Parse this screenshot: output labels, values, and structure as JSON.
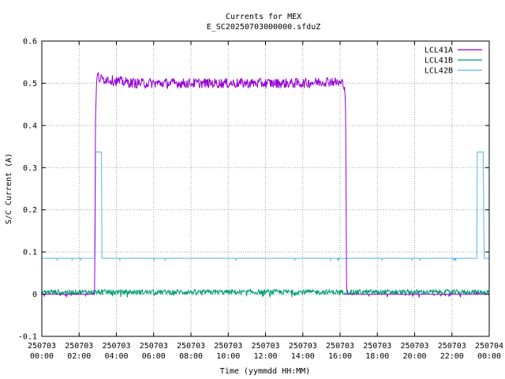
{
  "chart_data": {
    "type": "line",
    "title": "Currents for MEX",
    "subtitle": "E_SC20250703000000.sfduZ",
    "xlabel": "Time (yymmdd HH:MM)",
    "ylabel": "S/C Current (A)",
    "xlim": [
      0,
      24
    ],
    "ylim": [
      -0.1,
      0.6
    ],
    "grid": true,
    "legend_position": "top-right",
    "x_ticks": [
      {
        "x": 0,
        "line1": "250703",
        "line2": "00:00"
      },
      {
        "x": 2,
        "line1": "250703",
        "line2": "02:00"
      },
      {
        "x": 4,
        "line1": "250703",
        "line2": "04:00"
      },
      {
        "x": 6,
        "line1": "250703",
        "line2": "06:00"
      },
      {
        "x": 8,
        "line1": "250703",
        "line2": "08:00"
      },
      {
        "x": 10,
        "line1": "250703",
        "line2": "10:00"
      },
      {
        "x": 12,
        "line1": "250703",
        "line2": "12:00"
      },
      {
        "x": 14,
        "line1": "250703",
        "line2": "14:00"
      },
      {
        "x": 16,
        "line1": "250703",
        "line2": "16:00"
      },
      {
        "x": 18,
        "line1": "250703",
        "line2": "18:00"
      },
      {
        "x": 20,
        "line1": "250703",
        "line2": "20:00"
      },
      {
        "x": 22,
        "line1": "250703",
        "line2": "22:00"
      },
      {
        "x": 24,
        "line1": "250704",
        "line2": "00:00"
      }
    ],
    "y_ticks": [
      {
        "y": -0.1,
        "label": "-0.1"
      },
      {
        "y": 0,
        "label": "0"
      },
      {
        "y": 0.1,
        "label": "0.1"
      },
      {
        "y": 0.2,
        "label": "0.2"
      },
      {
        "y": 0.3,
        "label": "0.3"
      },
      {
        "y": 0.4,
        "label": "0.4"
      },
      {
        "y": 0.5,
        "label": "0.5"
      },
      {
        "y": 0.6,
        "label": "0.6"
      }
    ],
    "series": [
      {
        "name": "LCL41A",
        "color": "#9400d3",
        "x": [
          0,
          2.85,
          2.86,
          2.9,
          2.95,
          3.0,
          3.1,
          3.5,
          4.0,
          5.0,
          6.0,
          8.0,
          10.0,
          12.0,
          14.0,
          15.5,
          16.0,
          16.2,
          16.25,
          16.3,
          16.35,
          24
        ],
        "y": [
          0,
          0,
          0.4,
          0.45,
          0.51,
          0.52,
          0.51,
          0.51,
          0.505,
          0.5,
          0.5,
          0.5,
          0.5,
          0.5,
          0.5,
          0.505,
          0.5,
          0.5,
          0.49,
          0.44,
          0,
          0
        ],
        "noise": 0.012
      },
      {
        "name": "LCL41B",
        "color": "#009e73",
        "x": [
          0,
          24
        ],
        "y": [
          0.005,
          0.005
        ],
        "noise": 0.006
      },
      {
        "name": "LCL42B",
        "color": "#56b4e9",
        "x": [
          0,
          2.85,
          2.86,
          3.2,
          3.21,
          23.35,
          23.36,
          23.7,
          23.71,
          24
        ],
        "y": [
          0.085,
          0.085,
          0.337,
          0.337,
          0.085,
          0.085,
          0.337,
          0.337,
          0.085,
          0.085
        ],
        "noise": 0.002
      }
    ]
  }
}
